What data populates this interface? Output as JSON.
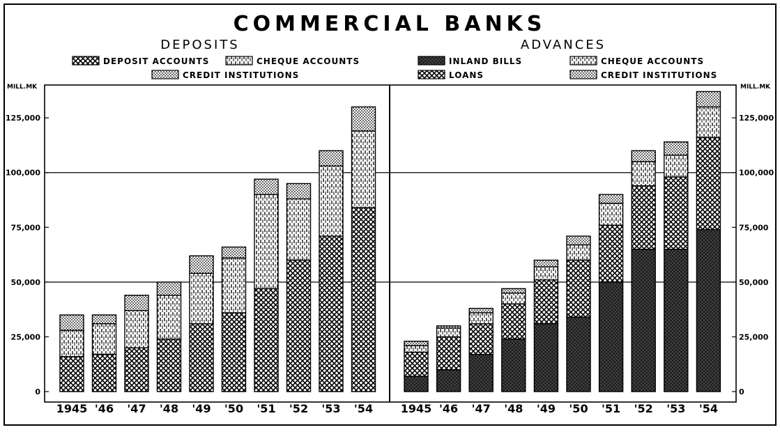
{
  "title": "COMMERCIAL BANKS",
  "unit_label": "MILL.MK",
  "yticks": [
    "0",
    "25,000",
    "50,000",
    "75,000",
    "100,000",
    "125,000"
  ],
  "colors": {
    "ink": "#000000",
    "paper": "#ffffff"
  },
  "chart_data": [
    {
      "type": "bar",
      "stacked": true,
      "title": "DEPOSITS",
      "ylabel": "MILL.MK",
      "ylim": [
        0,
        140000
      ],
      "grid": true,
      "legend": "top",
      "categories": [
        "1945",
        "'46",
        "'47",
        "'48",
        "'49",
        "'50",
        "'51",
        "'52",
        "'53",
        "'54"
      ],
      "series": [
        {
          "name": "DEPOSIT ACCOUNTS",
          "pattern": "crosshatch",
          "values": [
            16000,
            17000,
            20000,
            24000,
            31000,
            36000,
            47000,
            60000,
            71000,
            84000
          ]
        },
        {
          "name": "CHEQUE ACCOUNTS",
          "pattern": "vertical-dash",
          "values": [
            12000,
            14000,
            17000,
            20000,
            23000,
            25000,
            43000,
            28000,
            32000,
            35000
          ]
        },
        {
          "name": "CREDIT INSTITUTIONS",
          "pattern": "dots",
          "values": [
            7000,
            4000,
            7000,
            6000,
            8000,
            5000,
            7000,
            7000,
            7000,
            11000
          ]
        }
      ]
    },
    {
      "type": "bar",
      "stacked": true,
      "title": "ADVANCES",
      "ylabel": "MILL.MK",
      "ylim": [
        0,
        140000
      ],
      "grid": true,
      "legend": "top",
      "categories": [
        "1945",
        "'46",
        "'47",
        "'48",
        "'49",
        "'50",
        "'51",
        "'52",
        "'53",
        "'54"
      ],
      "series": [
        {
          "name": "INLAND BILLS",
          "pattern": "dark",
          "values": [
            7000,
            10000,
            17000,
            24000,
            31000,
            34000,
            50000,
            65000,
            65000,
            74000
          ]
        },
        {
          "name": "LOANS",
          "pattern": "crosshatch",
          "values": [
            11000,
            15000,
            14000,
            16000,
            20000,
            26000,
            26000,
            29000,
            33000,
            42000
          ]
        },
        {
          "name": "CHEQUE ACCOUNTS",
          "pattern": "vertical-dash",
          "values": [
            3000,
            4000,
            5000,
            5000,
            6000,
            7000,
            10000,
            11000,
            10000,
            14000
          ]
        },
        {
          "name": "CREDIT INSTITUTIONS",
          "pattern": "dots",
          "values": [
            2000,
            1000,
            2000,
            2000,
            3000,
            4000,
            4000,
            5000,
            6000,
            7000
          ]
        }
      ]
    }
  ]
}
